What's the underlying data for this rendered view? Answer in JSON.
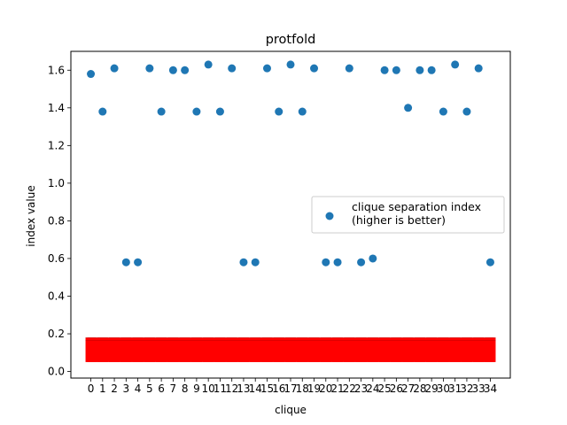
{
  "chart_data": {
    "type": "scatter",
    "title": "protfold",
    "xlabel": "clique",
    "ylabel": "index value",
    "xlim": [
      -1.7,
      35.7
    ],
    "ylim": [
      -0.035,
      1.7
    ],
    "grid": false,
    "legend_placement": "center-right",
    "x": [
      0,
      1,
      2,
      3,
      4,
      5,
      6,
      7,
      8,
      9,
      10,
      11,
      12,
      13,
      14,
      15,
      16,
      17,
      18,
      19,
      20,
      21,
      22,
      23,
      24,
      25,
      26,
      27,
      28,
      29,
      30,
      31,
      32,
      33,
      34
    ],
    "x_tick_labels": [
      "0",
      "1",
      "2",
      "3",
      "4",
      "5",
      "6",
      "7",
      "8",
      "9",
      "10",
      "11",
      "12",
      "13",
      "14",
      "15",
      "16",
      "17",
      "18",
      "19",
      "20",
      "21",
      "22",
      "23",
      "24",
      "25",
      "26",
      "27",
      "28",
      "29",
      "30",
      "31",
      "32",
      "33",
      "34"
    ],
    "y_ticks": [
      0.0,
      0.2,
      0.4,
      0.6,
      0.8,
      1.0,
      1.2,
      1.4,
      1.6
    ],
    "y_tick_labels": [
      "0.0",
      "0.2",
      "0.4",
      "0.6",
      "0.8",
      "1.0",
      "1.2",
      "1.4",
      "1.6"
    ],
    "series": [
      {
        "name": "clique separation index\n(higher is better)",
        "color": "#1f77b4",
        "marker": "circle",
        "values": [
          1.58,
          1.38,
          1.61,
          0.58,
          0.58,
          1.61,
          1.38,
          1.6,
          1.6,
          1.38,
          1.63,
          1.38,
          1.61,
          0.58,
          0.58,
          1.61,
          1.38,
          1.63,
          1.38,
          1.61,
          0.58,
          0.58,
          1.61,
          0.58,
          0.6,
          1.6,
          1.6,
          1.4,
          1.6,
          1.6,
          1.38,
          1.63,
          1.38,
          1.61,
          0.58
        ]
      },
      {
        "color": "#ff0000",
        "marker": "dense-band",
        "y_range": [
          0.05,
          0.18
        ]
      }
    ]
  }
}
